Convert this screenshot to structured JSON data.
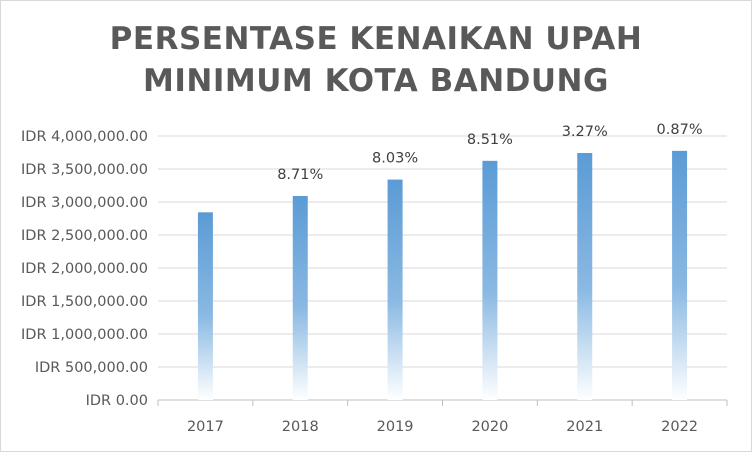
{
  "chart_data": {
    "type": "bar",
    "title_line1": "PERSENTASE KENAIKAN UPAH",
    "title_line2": "MINIMUM KOTA BANDUNG",
    "categories": [
      "2017",
      "2018",
      "2019",
      "2020",
      "2021",
      "2022"
    ],
    "values": [
      2843662,
      3091345,
      3339580,
      3623778,
      3742276,
      3774860
    ],
    "data_labels": [
      "",
      "8.71%",
      "8.03%",
      "8.51%",
      "3.27%",
      "0.87%"
    ],
    "y_ticks": [
      "IDR 0.00",
      "IDR 500,000.00",
      "IDR 1,000,000.00",
      "IDR 1,500,000.00",
      "IDR 2,000,000.00",
      "IDR 2,500,000.00",
      "IDR 3,000,000.00",
      "IDR 3,500,000.00",
      "IDR 4,000,000.00"
    ],
    "ylim": [
      0,
      4000000
    ],
    "grid": true,
    "bar_color": "#5b9bd5"
  }
}
